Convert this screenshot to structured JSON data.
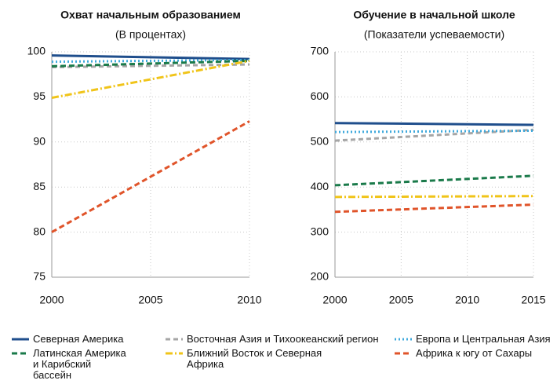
{
  "chart_data": [
    {
      "type": "line",
      "title": "Охват начальным образованием",
      "subtitle": "(В процентах)",
      "x": [
        2000,
        2010
      ],
      "xlim": [
        2000,
        2010
      ],
      "xticks": [
        2000,
        2005,
        2010
      ],
      "ylim": [
        75,
        100
      ],
      "yticks": [
        75,
        80,
        85,
        90,
        95,
        100
      ],
      "grid": true,
      "series": [
        {
          "values": [
            99.6,
            99.2
          ]
        },
        {
          "values": [
            98.3,
            98.6
          ]
        },
        {
          "values": [
            98.9,
            99.1
          ]
        },
        {
          "values": [
            98.4,
            99.0
          ]
        },
        {
          "values": [
            94.9,
            99.0
          ]
        },
        {
          "values": [
            80.0,
            92.3
          ]
        }
      ]
    },
    {
      "type": "line",
      "title": "Обучение в начальной школе",
      "subtitle": "(Показатели успеваемости)",
      "x": [
        2000,
        2015
      ],
      "xlim": [
        2000,
        2015
      ],
      "xticks": [
        2000,
        2005,
        2010,
        2015
      ],
      "ylim": [
        200,
        700
      ],
      "yticks": [
        200,
        300,
        400,
        500,
        600,
        700
      ],
      "grid": true,
      "series": [
        {
          "values": [
            542,
            538
          ]
        },
        {
          "values": [
            503,
            527
          ]
        },
        {
          "values": [
            522,
            525
          ]
        },
        {
          "values": [
            404,
            425
          ]
        },
        {
          "values": [
            378,
            380
          ]
        },
        {
          "values": [
            345,
            361
          ]
        }
      ]
    }
  ],
  "legend": [
    {
      "name": "Северная Америка",
      "color": "#1f4e8c",
      "dash": "none"
    },
    {
      "name": "Восточная Азия и Тихоокеанский регион",
      "color": "#a6a6a6",
      "dash": "6,4"
    },
    {
      "name": "Европа и Центральная Азия",
      "color": "#3fa9dc",
      "dash": "2,3"
    },
    {
      "name": "Латинская Америка и Карибский бассейн",
      "color": "#1a7a4a",
      "dash": "7,4"
    },
    {
      "name": "Ближний Восток и Северная Африка",
      "color": "#f0c419",
      "dash": "9,3,2,3"
    },
    {
      "name": "Африка к югу от Сахары",
      "color": "#e0542a",
      "dash": "7,4"
    }
  ]
}
